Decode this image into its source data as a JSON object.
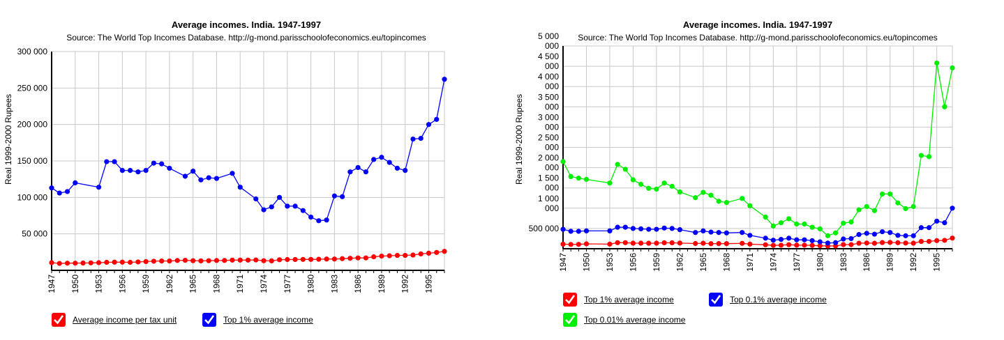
{
  "chart_data": [
    {
      "type": "line",
      "title": "Average incomes. India. 1947-1997",
      "subtitle": "Source: The World Top Incomes Database. http://g-mond.parisschoolofeconomics.eu/topincomes",
      "xlabel": "",
      "ylabel": "Real 1999-2000 Rupees",
      "x_tick_labels": [
        "1947",
        "1950",
        "1953",
        "1956",
        "1959",
        "1962",
        "1965",
        "1968",
        "1971",
        "1974",
        "1977",
        "1980",
        "1983",
        "1986",
        "1989",
        "1992",
        "1995"
      ],
      "y_tick_labels": [
        "50 000",
        "100 000",
        "150 000",
        "200 000",
        "250 000",
        "300 000"
      ],
      "y_ticks": [
        50000,
        100000,
        150000,
        200000,
        250000,
        300000
      ],
      "ylim": [
        0,
        300000
      ],
      "xlim": [
        1947,
        1997
      ],
      "grid": true,
      "legend_position": "bottom-left",
      "series": [
        {
          "name": "Average income per tax unit",
          "color": "#ff0000",
          "points": [
            [
              1947,
              10500
            ],
            [
              1948,
              9500
            ],
            [
              1949,
              9800
            ],
            [
              1950,
              9800
            ],
            [
              1951,
              10000
            ],
            [
              1952,
              10200
            ],
            [
              1953,
              10500
            ],
            [
              1954,
              11000
            ],
            [
              1955,
              11200
            ],
            [
              1956,
              11200
            ],
            [
              1957,
              11000
            ],
            [
              1958,
              11500
            ],
            [
              1959,
              12000
            ],
            [
              1960,
              12500
            ],
            [
              1961,
              12800
            ],
            [
              1962,
              12800
            ],
            [
              1963,
              13500
            ],
            [
              1964,
              13800
            ],
            [
              1965,
              13200
            ],
            [
              1966,
              13000
            ],
            [
              1967,
              13200
            ],
            [
              1968,
              13500
            ],
            [
              1969,
              13500
            ],
            [
              1970,
              14000
            ],
            [
              1971,
              14000
            ],
            [
              1972,
              14000
            ],
            [
              1973,
              14200
            ],
            [
              1974,
              13200
            ],
            [
              1975,
              13000
            ],
            [
              1976,
              14500
            ],
            [
              1977,
              14800
            ],
            [
              1978,
              14800
            ],
            [
              1979,
              15000
            ],
            [
              1980,
              15000
            ],
            [
              1981,
              15200
            ],
            [
              1982,
              15500
            ],
            [
              1983,
              15500
            ],
            [
              1984,
              16000
            ],
            [
              1985,
              16500
            ],
            [
              1986,
              17000
            ],
            [
              1987,
              17000
            ],
            [
              1988,
              18500
            ],
            [
              1989,
              19500
            ],
            [
              1990,
              20000
            ],
            [
              1991,
              20500
            ],
            [
              1992,
              20500
            ],
            [
              1993,
              21000
            ],
            [
              1994,
              22500
            ],
            [
              1995,
              23500
            ],
            [
              1996,
              24500
            ],
            [
              1997,
              26000
            ]
          ]
        },
        {
          "name": "Top 1% average income",
          "color": "#0000ff",
          "points": [
            [
              1947,
              113000
            ],
            [
              1948,
              106000
            ],
            [
              1949,
              108000
            ],
            [
              1950,
              120000
            ],
            [
              1953,
              114000
            ],
            [
              1954,
              149000
            ],
            [
              1955,
              149000
            ],
            [
              1956,
              137000
            ],
            [
              1957,
              137000
            ],
            [
              1958,
              135000
            ],
            [
              1959,
              137000
            ],
            [
              1960,
              147000
            ],
            [
              1961,
              146000
            ],
            [
              1962,
              140000
            ],
            [
              1964,
              129000
            ],
            [
              1965,
              136000
            ],
            [
              1966,
              124000
            ],
            [
              1967,
              127000
            ],
            [
              1968,
              126000
            ],
            [
              1970,
              133000
            ],
            [
              1971,
              114000
            ],
            [
              1973,
              98000
            ],
            [
              1974,
              83000
            ],
            [
              1975,
              87000
            ],
            [
              1976,
              100000
            ],
            [
              1977,
              88000
            ],
            [
              1978,
              88000
            ],
            [
              1979,
              82000
            ],
            [
              1980,
              73000
            ],
            [
              1981,
              68000
            ],
            [
              1982,
              69000
            ],
            [
              1983,
              102000
            ],
            [
              1984,
              101000
            ],
            [
              1985,
              135000
            ],
            [
              1986,
              141000
            ],
            [
              1987,
              135000
            ],
            [
              1988,
              152000
            ],
            [
              1989,
              155000
            ],
            [
              1990,
              148000
            ],
            [
              1991,
              140000
            ],
            [
              1992,
              137000
            ],
            [
              1993,
              180000
            ],
            [
              1994,
              181000
            ],
            [
              1995,
              200000
            ],
            [
              1996,
              207000
            ],
            [
              1997,
              262000
            ]
          ]
        }
      ]
    },
    {
      "type": "line",
      "title": "Average incomes. India. 1947-1997",
      "subtitle": "Source: The World Top Incomes Database. http://g-mond.parisschoolofeconomics.eu/topincomes",
      "xlabel": "",
      "ylabel": "Real 1999-2000 Rupees",
      "x_tick_labels": [
        "1947",
        "1950",
        "1953",
        "1956",
        "1959",
        "1962",
        "1965",
        "1968",
        "1971",
        "1974",
        "1977",
        "1980",
        "1983",
        "1986",
        "1989",
        "1992",
        "1995"
      ],
      "y_tick_labels": [
        [
          "500 000"
        ],
        [
          "1 000",
          "000"
        ],
        [
          "1 500",
          "000"
        ],
        [
          "2 000",
          "000"
        ],
        [
          "2 500",
          "000"
        ],
        [
          "3 000",
          "000"
        ],
        [
          "3 500",
          "000"
        ],
        [
          "4 000",
          "000"
        ],
        [
          "4 500",
          "000"
        ],
        [
          "5 000",
          "000"
        ]
      ],
      "y_ticks": [
        500000,
        1000000,
        1500000,
        2000000,
        2500000,
        3000000,
        3500000,
        4000000,
        4500000,
        5000000
      ],
      "ylim": [
        0,
        5000000
      ],
      "xlim": [
        1947,
        1997
      ],
      "grid": true,
      "legend_position": "bottom-left",
      "series": [
        {
          "name": "Top 1% average income",
          "color": "#ff0000",
          "points": [
            [
              1947,
              113000
            ],
            [
              1948,
              106000
            ],
            [
              1949,
              108000
            ],
            [
              1950,
              120000
            ],
            [
              1953,
              114000
            ],
            [
              1954,
              149000
            ],
            [
              1955,
              149000
            ],
            [
              1956,
              137000
            ],
            [
              1957,
              137000
            ],
            [
              1958,
              135000
            ],
            [
              1959,
              137000
            ],
            [
              1960,
              147000
            ],
            [
              1961,
              146000
            ],
            [
              1962,
              140000
            ],
            [
              1964,
              129000
            ],
            [
              1965,
              136000
            ],
            [
              1966,
              124000
            ],
            [
              1967,
              127000
            ],
            [
              1968,
              126000
            ],
            [
              1970,
              133000
            ],
            [
              1971,
              114000
            ],
            [
              1973,
              98000
            ],
            [
              1974,
              83000
            ],
            [
              1975,
              87000
            ],
            [
              1976,
              100000
            ],
            [
              1977,
              88000
            ],
            [
              1978,
              88000
            ],
            [
              1979,
              82000
            ],
            [
              1980,
              73000
            ],
            [
              1981,
              68000
            ],
            [
              1982,
              69000
            ],
            [
              1983,
              102000
            ],
            [
              1984,
              101000
            ],
            [
              1985,
              135000
            ],
            [
              1986,
              141000
            ],
            [
              1987,
              135000
            ],
            [
              1988,
              152000
            ],
            [
              1989,
              155000
            ],
            [
              1990,
              148000
            ],
            [
              1991,
              140000
            ],
            [
              1992,
              137000
            ],
            [
              1993,
              180000
            ],
            [
              1994,
              181000
            ],
            [
              1995,
              200000
            ],
            [
              1996,
              207000
            ],
            [
              1997,
              262000
            ]
          ]
        },
        {
          "name": "Top 0.1% average income",
          "color": "#0000ff",
          "points": [
            [
              1947,
              480000
            ],
            [
              1948,
              430000
            ],
            [
              1949,
              430000
            ],
            [
              1950,
              440000
            ],
            [
              1953,
              440000
            ],
            [
              1954,
              530000
            ],
            [
              1955,
              530000
            ],
            [
              1956,
              500000
            ],
            [
              1957,
              490000
            ],
            [
              1958,
              480000
            ],
            [
              1959,
              480000
            ],
            [
              1960,
              510000
            ],
            [
              1961,
              500000
            ],
            [
              1962,
              470000
            ],
            [
              1964,
              400000
            ],
            [
              1965,
              440000
            ],
            [
              1966,
              410000
            ],
            [
              1967,
              400000
            ],
            [
              1968,
              390000
            ],
            [
              1970,
              400000
            ],
            [
              1971,
              330000
            ],
            [
              1973,
              260000
            ],
            [
              1974,
              210000
            ],
            [
              1975,
              230000
            ],
            [
              1976,
              260000
            ],
            [
              1977,
              220000
            ],
            [
              1978,
              220000
            ],
            [
              1979,
              200000
            ],
            [
              1980,
              170000
            ],
            [
              1981,
              140000
            ],
            [
              1982,
              150000
            ],
            [
              1983,
              240000
            ],
            [
              1984,
              250000
            ],
            [
              1985,
              350000
            ],
            [
              1986,
              380000
            ],
            [
              1987,
              360000
            ],
            [
              1988,
              420000
            ],
            [
              1989,
              400000
            ],
            [
              1990,
              330000
            ],
            [
              1991,
              320000
            ],
            [
              1992,
              320000
            ],
            [
              1993,
              520000
            ],
            [
              1994,
              520000
            ],
            [
              1995,
              680000
            ],
            [
              1996,
              640000
            ],
            [
              1997,
              1000000
            ]
          ]
        },
        {
          "name": "Top 0.01% average income",
          "color": "#00ee00",
          "points": [
            [
              1947,
              2150000
            ],
            [
              1948,
              1780000
            ],
            [
              1949,
              1740000
            ],
            [
              1950,
              1710000
            ],
            [
              1953,
              1620000
            ],
            [
              1954,
              2080000
            ],
            [
              1955,
              1960000
            ],
            [
              1956,
              1700000
            ],
            [
              1957,
              1590000
            ],
            [
              1958,
              1490000
            ],
            [
              1959,
              1470000
            ],
            [
              1960,
              1620000
            ],
            [
              1961,
              1540000
            ],
            [
              1962,
              1400000
            ],
            [
              1964,
              1260000
            ],
            [
              1965,
              1390000
            ],
            [
              1966,
              1320000
            ],
            [
              1967,
              1170000
            ],
            [
              1968,
              1140000
            ],
            [
              1970,
              1240000
            ],
            [
              1971,
              1060000
            ],
            [
              1973,
              780000
            ],
            [
              1974,
              560000
            ],
            [
              1975,
              640000
            ],
            [
              1976,
              740000
            ],
            [
              1977,
              610000
            ],
            [
              1978,
              610000
            ],
            [
              1979,
              530000
            ],
            [
              1980,
              490000
            ],
            [
              1981,
              320000
            ],
            [
              1982,
              390000
            ],
            [
              1983,
              630000
            ],
            [
              1984,
              660000
            ],
            [
              1985,
              960000
            ],
            [
              1986,
              1040000
            ],
            [
              1987,
              940000
            ],
            [
              1988,
              1350000
            ],
            [
              1989,
              1350000
            ],
            [
              1990,
              1130000
            ],
            [
              1991,
              990000
            ],
            [
              1992,
              1040000
            ],
            [
              1993,
              2300000
            ],
            [
              1994,
              2270000
            ],
            [
              1995,
              4580000
            ],
            [
              1996,
              3500000
            ],
            [
              1997,
              4460000
            ]
          ]
        }
      ]
    }
  ]
}
